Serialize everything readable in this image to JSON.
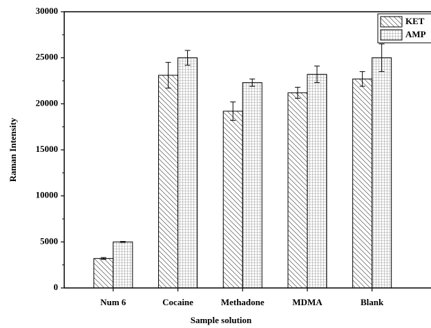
{
  "chart_data": {
    "type": "bar",
    "x_label": "Sample solution",
    "y_label": "Raman Intensity",
    "categories": [
      "Num 6",
      "Cocaine",
      "Methadone",
      "MDMA",
      "Blank"
    ],
    "series": [
      {
        "name": "KET",
        "color": "#000000",
        "pattern": "diagonal",
        "values": [
          3200,
          23100,
          19200,
          21200,
          22700
        ],
        "errors": [
          100,
          1400,
          1000,
          600,
          800
        ]
      },
      {
        "name": "AMP",
        "color": "#000000",
        "pattern": "grid",
        "values": [
          5000,
          25000,
          22300,
          23200,
          25000
        ],
        "errors": [
          50,
          800,
          400,
          900,
          1500
        ]
      }
    ],
    "ylim": [
      0,
      30000
    ],
    "yticks": [
      0,
      5000,
      10000,
      15000,
      20000,
      25000,
      30000
    ],
    "legend": "top-right"
  }
}
